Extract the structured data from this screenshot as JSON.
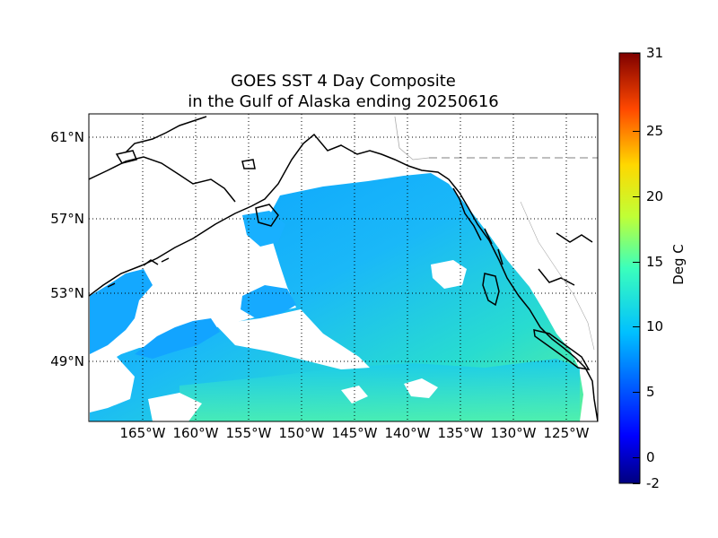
{
  "title_line1": "GOES SST 4 Day Composite",
  "title_line2": "in the Gulf of Alaska ending 20250616",
  "lat_labels": [
    "61°N",
    "57°N",
    "53°N",
    "49°N"
  ],
  "lon_labels": [
    "165°W",
    "160°W",
    "155°W",
    "150°W",
    "145°W",
    "140°W",
    "135°W",
    "130°W",
    "125°W"
  ],
  "colorbar": {
    "label": "Deg C",
    "min": -2,
    "max": 31,
    "ticks": [
      "-2",
      "0",
      "5",
      "10",
      "15",
      "20",
      "25",
      "31"
    ],
    "colormap": "jet"
  },
  "colors": {
    "sst_typical": "#14a8ff",
    "sst_warm": "#3ff0b0",
    "land_outline": "#000000",
    "no_data": "#ffffff"
  }
}
